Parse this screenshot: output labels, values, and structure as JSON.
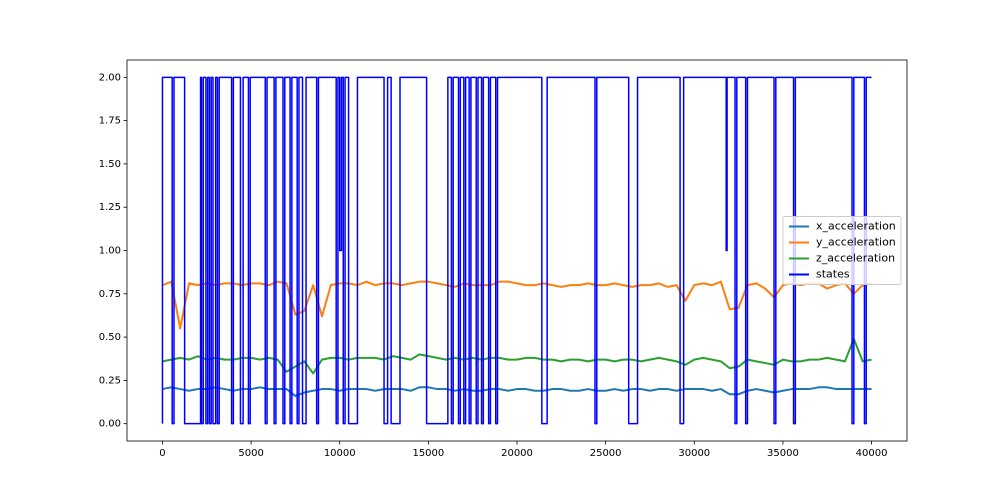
{
  "chart_data": {
    "type": "line",
    "x": [
      0,
      500,
      1000,
      1500,
      2000,
      2500,
      3000,
      3500,
      4000,
      4500,
      5000,
      5500,
      6000,
      6500,
      7000,
      7500,
      8000,
      8500,
      9000,
      9500,
      10000,
      10500,
      11000,
      11500,
      12000,
      12500,
      13000,
      13500,
      14000,
      14500,
      15000,
      15500,
      16000,
      16500,
      17000,
      17500,
      18000,
      18500,
      19000,
      19500,
      20000,
      20500,
      21000,
      21500,
      22000,
      22500,
      23000,
      23500,
      24000,
      24500,
      25000,
      25500,
      26000,
      26500,
      27000,
      27500,
      28000,
      28500,
      29000,
      29500,
      30000,
      30500,
      31000,
      31500,
      32000,
      32500,
      33000,
      33500,
      34000,
      34500,
      35000,
      35500,
      36000,
      36500,
      37000,
      37500,
      38000,
      38500,
      39000,
      39500,
      40000
    ],
    "series": [
      {
        "name": "x_acceleration",
        "color": "#1f77b4",
        "values": [
          0.2,
          0.21,
          0.2,
          0.19,
          0.2,
          0.2,
          0.21,
          0.2,
          0.19,
          0.2,
          0.2,
          0.21,
          0.2,
          0.2,
          0.2,
          0.16,
          0.18,
          0.19,
          0.2,
          0.2,
          0.19,
          0.2,
          0.2,
          0.2,
          0.19,
          0.2,
          0.2,
          0.2,
          0.19,
          0.21,
          0.21,
          0.2,
          0.2,
          0.19,
          0.2,
          0.19,
          0.19,
          0.2,
          0.2,
          0.19,
          0.2,
          0.2,
          0.19,
          0.19,
          0.2,
          0.2,
          0.19,
          0.19,
          0.2,
          0.19,
          0.19,
          0.2,
          0.19,
          0.2,
          0.2,
          0.19,
          0.2,
          0.2,
          0.19,
          0.2,
          0.2,
          0.2,
          0.19,
          0.2,
          0.17,
          0.17,
          0.19,
          0.2,
          0.19,
          0.18,
          0.19,
          0.2,
          0.2,
          0.2,
          0.21,
          0.21,
          0.2,
          0.2,
          0.2,
          0.2,
          0.2
        ]
      },
      {
        "name": "y_acceleration",
        "color": "#ff7f0e",
        "values": [
          0.8,
          0.82,
          0.55,
          0.81,
          0.8,
          0.81,
          0.8,
          0.81,
          0.81,
          0.8,
          0.81,
          0.81,
          0.8,
          0.82,
          0.81,
          0.63,
          0.65,
          0.8,
          0.62,
          0.8,
          0.81,
          0.81,
          0.8,
          0.82,
          0.8,
          0.81,
          0.81,
          0.8,
          0.81,
          0.82,
          0.82,
          0.81,
          0.8,
          0.79,
          0.81,
          0.8,
          0.8,
          0.8,
          0.82,
          0.82,
          0.81,
          0.8,
          0.8,
          0.81,
          0.8,
          0.79,
          0.8,
          0.8,
          0.81,
          0.8,
          0.8,
          0.81,
          0.8,
          0.79,
          0.8,
          0.8,
          0.81,
          0.79,
          0.8,
          0.71,
          0.8,
          0.81,
          0.8,
          0.82,
          0.66,
          0.67,
          0.8,
          0.81,
          0.78,
          0.73,
          0.8,
          0.81,
          0.8,
          0.81,
          0.81,
          0.78,
          0.8,
          0.81,
          0.75,
          0.8,
          0.81
        ]
      },
      {
        "name": "z_acceleration",
        "color": "#2ca02c",
        "values": [
          0.36,
          0.37,
          0.38,
          0.37,
          0.39,
          0.37,
          0.38,
          0.37,
          0.37,
          0.38,
          0.38,
          0.37,
          0.38,
          0.37,
          0.3,
          0.33,
          0.36,
          0.29,
          0.37,
          0.38,
          0.38,
          0.37,
          0.38,
          0.38,
          0.38,
          0.37,
          0.39,
          0.38,
          0.37,
          0.4,
          0.39,
          0.38,
          0.37,
          0.38,
          0.37,
          0.38,
          0.37,
          0.38,
          0.38,
          0.37,
          0.37,
          0.38,
          0.38,
          0.37,
          0.37,
          0.36,
          0.37,
          0.37,
          0.36,
          0.37,
          0.37,
          0.36,
          0.37,
          0.37,
          0.36,
          0.37,
          0.38,
          0.37,
          0.36,
          0.34,
          0.37,
          0.38,
          0.37,
          0.36,
          0.32,
          0.33,
          0.37,
          0.36,
          0.35,
          0.34,
          0.37,
          0.36,
          0.36,
          0.37,
          0.37,
          0.38,
          0.37,
          0.36,
          0.49,
          0.36,
          0.37
        ]
      },
      {
        "name": "states",
        "color": "#0000ff",
        "x": [
          0,
          0,
          550,
          550,
          650,
          650,
          1250,
          1250,
          2150,
          2150,
          2200,
          2200,
          2300,
          2300,
          2450,
          2450,
          2550,
          2550,
          2650,
          2650,
          2750,
          2750,
          2850,
          2850,
          3000,
          3000,
          3100,
          3100,
          3200,
          3200,
          3900,
          3900,
          4000,
          4000,
          4400,
          4400,
          4550,
          4550,
          4850,
          4850,
          4950,
          4950,
          5800,
          5800,
          5900,
          5900,
          6300,
          6300,
          6400,
          6400,
          6800,
          6800,
          6900,
          6900,
          7200,
          7200,
          7300,
          7300,
          7600,
          7600,
          7700,
          7700,
          7900,
          7900,
          8100,
          8100,
          8700,
          8700,
          8800,
          8800,
          9800,
          9800,
          9900,
          9900,
          10000,
          10000,
          10100,
          10100,
          10200,
          10200,
          10300,
          10300,
          10500,
          10500,
          11000,
          11000,
          12500,
          12500,
          12700,
          12700,
          12900,
          12900,
          13400,
          13400,
          14900,
          14900,
          16100,
          16100,
          16300,
          16300,
          16400,
          16400,
          16700,
          16700,
          16800,
          16800,
          17000,
          17000,
          17100,
          17100,
          17300,
          17300,
          17400,
          17400,
          17700,
          17700,
          17800,
          17800,
          18000,
          18000,
          18100,
          18100,
          18400,
          18400,
          18500,
          18500,
          18800,
          18800,
          18900,
          18900,
          21400,
          21400,
          21700,
          21700,
          24400,
          24400,
          24500,
          24500,
          26300,
          26300,
          26800,
          26800,
          29200,
          29200,
          29400,
          29400,
          31800,
          31800,
          31850,
          31850,
          32300,
          32300,
          32400,
          32400,
          32900,
          32900,
          33000,
          33000,
          34500,
          34500,
          34600,
          34600,
          35600,
          35600,
          35700,
          35700,
          38900,
          38900,
          39000,
          39000,
          39600,
          39600,
          39700,
          39700,
          40000
        ],
        "values": [
          0,
          2,
          2,
          0,
          0,
          2,
          2,
          0,
          0,
          2,
          2,
          0,
          0,
          2,
          2,
          0,
          0,
          2,
          2,
          0,
          0,
          2,
          2,
          0,
          0,
          2,
          2,
          0,
          0,
          2,
          2,
          0,
          0,
          2,
          2,
          0,
          0,
          2,
          2,
          0,
          0,
          2,
          2,
          0,
          0,
          2,
          2,
          0,
          0,
          2,
          2,
          0,
          0,
          2,
          2,
          0,
          0,
          2,
          2,
          0,
          0,
          2,
          2,
          0,
          0,
          2,
          2,
          0,
          0,
          2,
          2,
          0,
          0,
          2,
          2,
          1,
          1,
          2,
          2,
          0,
          0,
          2,
          2,
          0,
          0,
          2,
          2,
          0,
          0,
          2,
          2,
          0,
          0,
          2,
          2,
          0,
          0,
          2,
          2,
          0,
          0,
          2,
          2,
          0,
          0,
          2,
          2,
          0,
          0,
          2,
          2,
          0,
          0,
          2,
          2,
          0,
          0,
          2,
          2,
          0,
          0,
          2,
          2,
          0,
          0,
          2,
          2,
          0,
          0,
          2,
          2,
          0,
          0,
          2,
          2,
          0,
          0,
          2,
          2,
          0,
          0,
          2,
          2,
          0,
          0,
          2,
          2,
          1,
          1,
          2,
          2,
          0,
          0,
          2,
          2,
          0,
          0,
          2,
          2,
          0,
          0,
          2,
          2,
          0,
          0,
          2,
          2,
          0,
          0,
          2,
          2,
          0,
          0,
          2,
          2
        ]
      }
    ],
    "xlim": [
      -2000,
      42000
    ],
    "xticks": [
      0,
      5000,
      10000,
      15000,
      20000,
      25000,
      30000,
      35000,
      40000
    ],
    "ylim": [
      -0.1,
      2.1
    ],
    "yticks": [
      {
        "value": 0,
        "label": "0.00"
      },
      0.25,
      {
        "value": 0.5,
        "label": "0.50"
      },
      0.75,
      {
        "value": 1,
        "label": "1.00"
      },
      1.25,
      {
        "value": 1.5,
        "label": "1.50"
      },
      1.75,
      {
        "value": 2,
        "label": "2.00"
      }
    ],
    "legend": "center right"
  }
}
